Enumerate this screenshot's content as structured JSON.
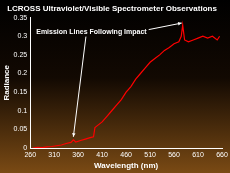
{
  "chart_data": {
    "type": "line",
    "title": "LCROSS Ultraviolet/Visible Spectrometer Observations",
    "x_label": "Wavelength (nm)",
    "y_label": "Radiance",
    "annotations": [
      "Emission Lines Following Impact"
    ],
    "x": [
      265,
      275,
      285,
      295,
      305,
      315,
      325,
      335,
      345,
      350,
      355,
      365,
      375,
      385,
      392,
      395,
      400,
      410,
      420,
      430,
      440,
      450,
      460,
      470,
      480,
      490,
      500,
      510,
      520,
      530,
      540,
      550,
      560,
      570,
      575,
      578,
      582,
      590,
      600,
      610,
      620,
      630,
      640,
      650,
      655
    ],
    "values": [
      0.0,
      0.002,
      0.001,
      0.003,
      0.004,
      0.006,
      0.008,
      0.012,
      0.015,
      0.022,
      0.016,
      0.02,
      0.024,
      0.028,
      0.03,
      0.055,
      0.06,
      0.07,
      0.085,
      0.1,
      0.115,
      0.13,
      0.15,
      0.165,
      0.185,
      0.2,
      0.215,
      0.23,
      0.24,
      0.25,
      0.262,
      0.27,
      0.28,
      0.285,
      0.3,
      0.33,
      0.29,
      0.285,
      0.29,
      0.295,
      0.3,
      0.295,
      0.3,
      0.29,
      0.3
    ],
    "color": "#ff0000",
    "xlim": [
      260,
      660
    ],
    "xticks": [
      260,
      310,
      360,
      410,
      460,
      510,
      560,
      610,
      660
    ],
    "ylim": [
      0,
      0.35
    ],
    "yticks": [
      0,
      0.05,
      0.1,
      0.15,
      0.2,
      0.25,
      0.3,
      0.35
    ],
    "grid": false
  }
}
